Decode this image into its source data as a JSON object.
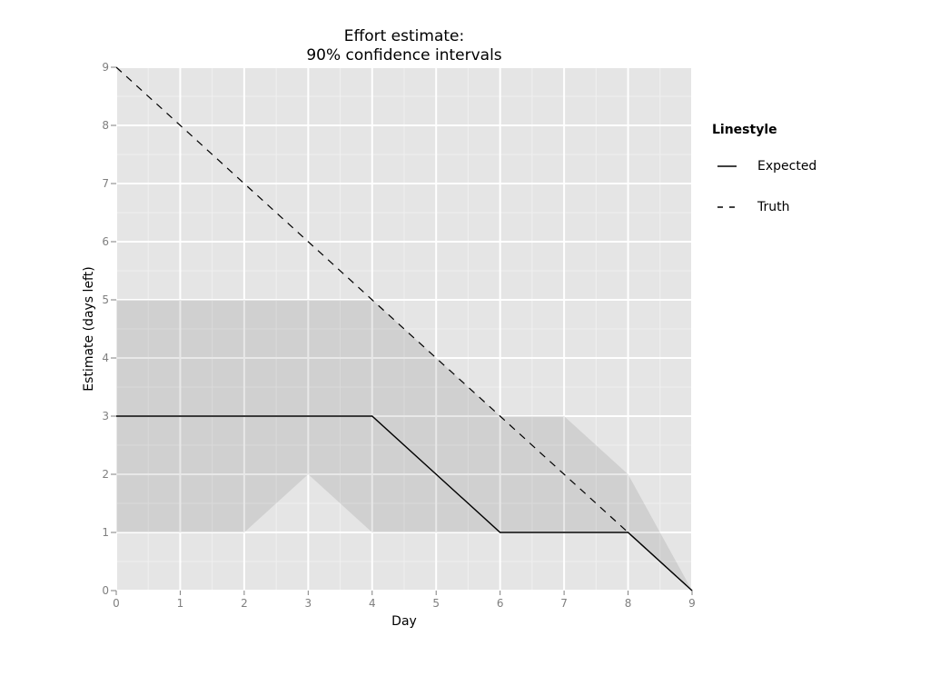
{
  "chart_data": {
    "type": "line",
    "title": "Effort estimate:\n90% confidence intervals",
    "title_lines": [
      "Effort estimate:",
      "90% confidence intervals"
    ],
    "xlabel": "Day",
    "ylabel": "Estimate (days left)",
    "x": [
      0,
      1,
      2,
      3,
      4,
      5,
      6,
      7,
      8,
      9
    ],
    "xticks": [
      0,
      1,
      2,
      3,
      4,
      5,
      6,
      7,
      8,
      9
    ],
    "yticks": [
      0,
      1,
      2,
      3,
      4,
      5,
      6,
      7,
      8,
      9
    ],
    "xlim": [
      0,
      9
    ],
    "ylim": [
      0,
      9
    ],
    "grid": true,
    "legend_position": "right",
    "series": [
      {
        "name": "Expected",
        "linestyle": "solid",
        "values": [
          3,
          3,
          3,
          3,
          3,
          2,
          1,
          1,
          1,
          0
        ]
      },
      {
        "name": "Truth",
        "linestyle": "dashed",
        "values": [
          9,
          8,
          7,
          6,
          5,
          4,
          3,
          2,
          1,
          0
        ]
      }
    ],
    "ribbon": {
      "name": "90% confidence interval",
      "upper": [
        5,
        5,
        5,
        5,
        5,
        4,
        3,
        3,
        2,
        0
      ],
      "lower": [
        1,
        1,
        1,
        2,
        1,
        1,
        1,
        1,
        1,
        0
      ]
    }
  },
  "legend": {
    "title": "Linestyle",
    "items": [
      {
        "label": "Expected",
        "linestyle": "solid"
      },
      {
        "label": "Truth",
        "linestyle": "dashed"
      }
    ]
  },
  "colors": {
    "panel": "#e5e5e5",
    "ribbon": "#d0d0d0",
    "grid_major": "#ffffff",
    "grid_minor": "#f0f0f0",
    "line": "#000000",
    "tick_text": "#7f7f7f"
  }
}
